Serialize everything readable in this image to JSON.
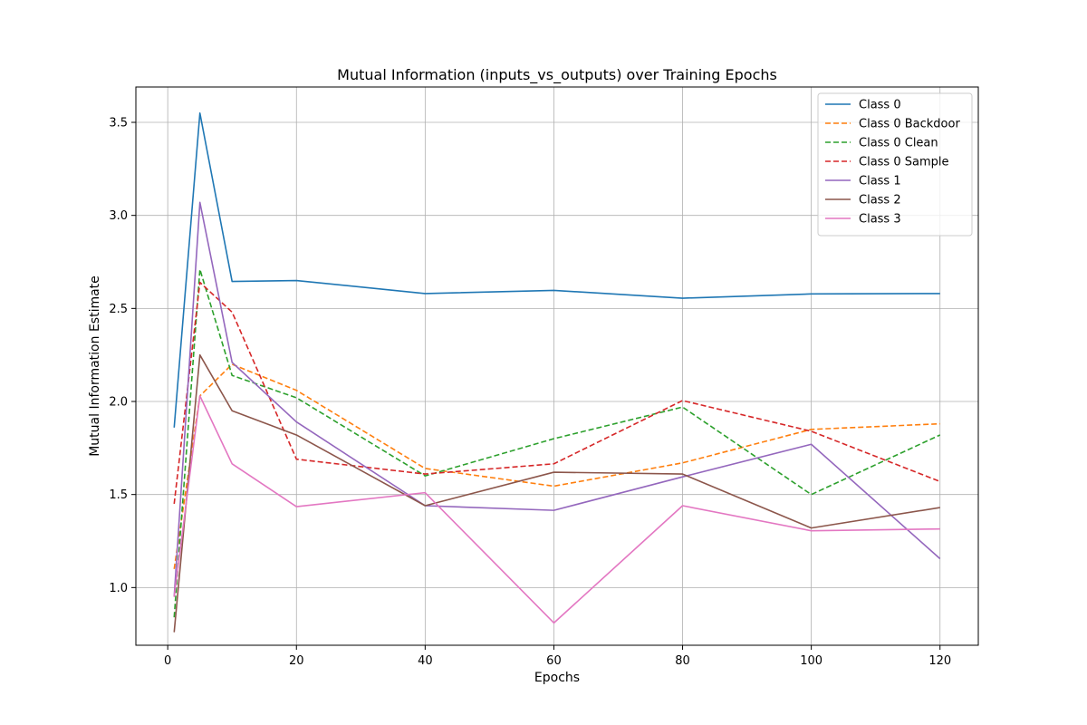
{
  "chart_data": {
    "type": "line",
    "title": "Mutual Information (inputs_vs_outputs) over Training Epochs",
    "xlabel": "Epochs",
    "ylabel": "Mutual Information Estimate",
    "x": [
      1,
      5,
      10,
      20,
      40,
      60,
      80,
      100,
      120
    ],
    "xlim": [
      -4.95,
      125.95
    ],
    "ylim": [
      0.69,
      3.69
    ],
    "xticks": [
      0,
      20,
      40,
      60,
      80,
      100,
      120
    ],
    "yticks": [
      1.0,
      1.5,
      2.0,
      2.5,
      3.0,
      3.5
    ],
    "ytick_labels": [
      "1.0",
      "1.5",
      "2.0",
      "2.5",
      "3.0",
      "3.5"
    ],
    "grid": true,
    "legend_position": "top-right",
    "series": [
      {
        "name": "Class 0",
        "color": "#1f77b4",
        "dash": "solid",
        "values": [
          1.86,
          3.55,
          2.645,
          2.65,
          2.58,
          2.597,
          2.555,
          2.578,
          2.58
        ]
      },
      {
        "name": "Class 0 Backdoor",
        "color": "#ff7f0e",
        "dash": "dashed",
        "values": [
          1.1,
          2.03,
          2.2,
          2.06,
          1.64,
          1.545,
          1.67,
          1.85,
          1.88
        ]
      },
      {
        "name": "Class 0 Clean",
        "color": "#2ca02c",
        "dash": "dashed",
        "values": [
          0.84,
          2.71,
          2.14,
          2.02,
          1.6,
          1.8,
          1.97,
          1.5,
          1.82
        ]
      },
      {
        "name": "Class 0 Sample",
        "color": "#d62728",
        "dash": "dashed",
        "values": [
          1.45,
          2.64,
          2.48,
          1.69,
          1.61,
          1.665,
          2.005,
          1.84,
          1.57
        ]
      },
      {
        "name": "Class 1",
        "color": "#9467bd",
        "dash": "solid",
        "values": [
          0.95,
          3.07,
          2.21,
          1.89,
          1.44,
          1.415,
          1.595,
          1.77,
          1.155
        ]
      },
      {
        "name": "Class 2",
        "color": "#8c564b",
        "dash": "solid",
        "values": [
          0.76,
          2.25,
          1.95,
          1.82,
          1.44,
          1.62,
          1.61,
          1.32,
          1.43
        ]
      },
      {
        "name": "Class 3",
        "color": "#e377c2",
        "dash": "solid",
        "values": [
          0.95,
          2.03,
          1.665,
          1.435,
          1.51,
          0.81,
          1.44,
          1.305,
          1.315
        ]
      }
    ]
  }
}
